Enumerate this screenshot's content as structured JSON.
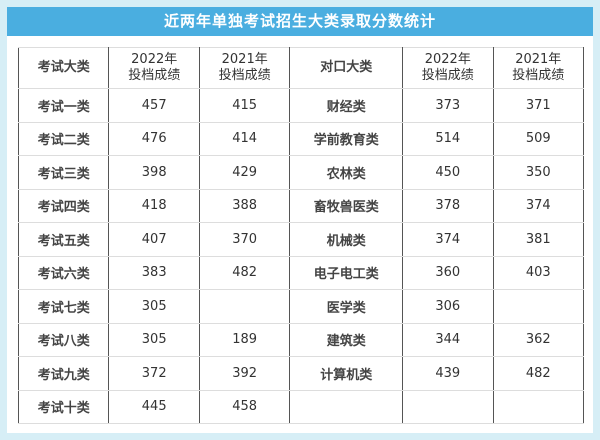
{
  "title": "近两年单独考试招生大类录取分数统计",
  "headers": [
    "考试大类",
    "2022年\n投档成绩",
    "2021年\n投档成绩",
    "对口大类",
    "2022年\n投档成绩",
    "2021年\n投档成绩"
  ],
  "rows": [
    [
      "考试一类",
      "457",
      "415",
      "财经类",
      "373",
      "371"
    ],
    [
      "考试二类",
      "476",
      "414",
      "学前教育类",
      "514",
      "509"
    ],
    [
      "考试三类",
      "398",
      "429",
      "农林类",
      "450",
      "350"
    ],
    [
      "考试四类",
      "418",
      "388",
      "畜牧兽医类",
      "378",
      "374"
    ],
    [
      "考试五类",
      "407",
      "370",
      "机械类",
      "374",
      "381"
    ],
    [
      "考试六类",
      "383",
      "482",
      "电子电工类",
      "360",
      "403"
    ],
    [
      "考试七类",
      "305",
      "",
      "医学类",
      "306",
      ""
    ],
    [
      "考试八类",
      "305",
      "189",
      "建筑类",
      "344",
      "362"
    ],
    [
      "考试九类",
      "372",
      "392",
      "计算机类",
      "439",
      "482"
    ],
    [
      "考试十类",
      "445",
      "458",
      "",
      "",
      ""
    ]
  ],
  "colors": {
    "title_bar": "#4aaee0",
    "background": "#d6eef6"
  }
}
